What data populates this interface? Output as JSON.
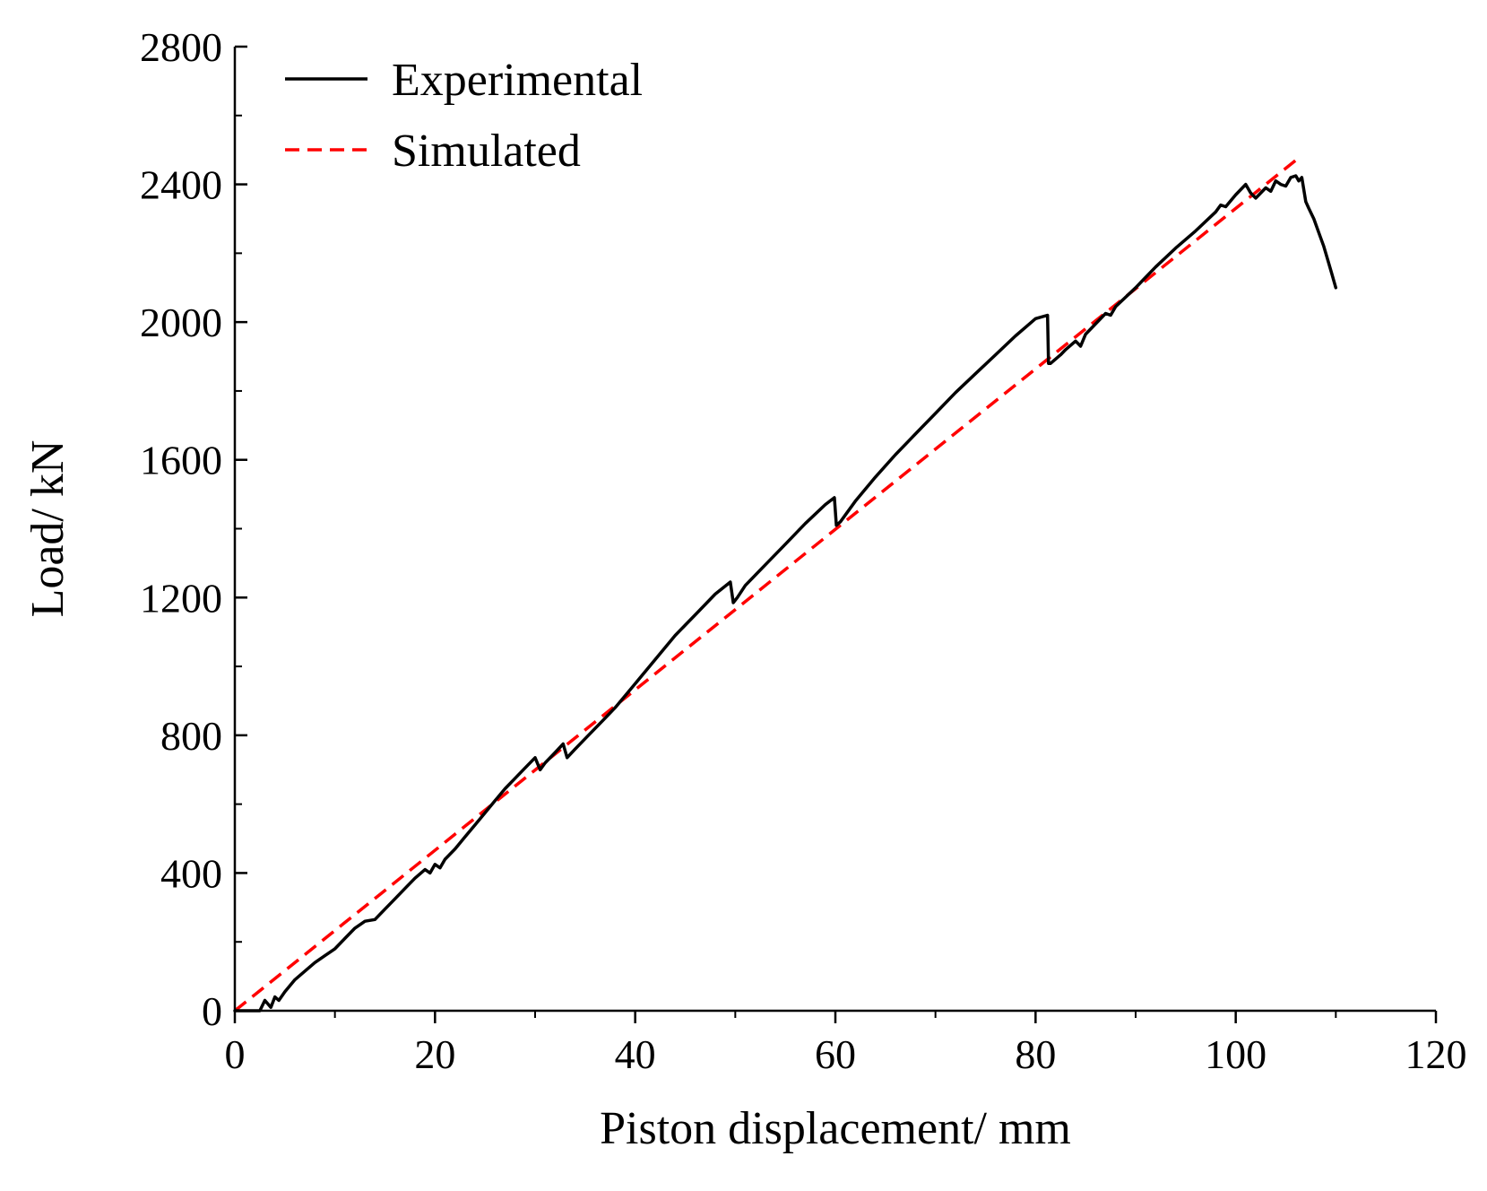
{
  "chart_data": {
    "type": "line",
    "title": "",
    "xlabel": "Piston displacement/ mm",
    "ylabel": "Load/ kN",
    "xlim": [
      0,
      120
    ],
    "ylim": [
      0,
      2800
    ],
    "xticks": [
      0,
      20,
      40,
      60,
      80,
      100,
      120
    ],
    "yticks": [
      0,
      400,
      800,
      1200,
      1600,
      2000,
      2400,
      2800
    ],
    "grid": false,
    "legend_position": "top-left",
    "series": [
      {
        "name": "Experimental",
        "color": "#000000",
        "style": "solid",
        "x": [
          0,
          2.5,
          3.0,
          3.6,
          4.0,
          4.4,
          5.0,
          6.0,
          7.0,
          8.0,
          9.0,
          10.0,
          11.0,
          12.0,
          13.0,
          14.0,
          15.0,
          16.0,
          17.0,
          18.0,
          19.0,
          19.5,
          20.0,
          20.5,
          21.0,
          22.0,
          23.0,
          24.0,
          25.0,
          26.0,
          27.0,
          28.0,
          29.0,
          30.0,
          30.5,
          31.0,
          32.0,
          32.8,
          33.2,
          34.0,
          35.0,
          36.0,
          37.0,
          38.0,
          40.0,
          42.0,
          44.0,
          46.0,
          48.0,
          49.5,
          49.8,
          50.2,
          51.0,
          53.0,
          55.0,
          57.0,
          59.0,
          59.9,
          60.1,
          60.5,
          62.0,
          64.0,
          66.0,
          68.0,
          70.0,
          72.0,
          74.0,
          76.0,
          78.0,
          80.0,
          81.2,
          81.3,
          81.5,
          82.5,
          83.0,
          84.0,
          84.5,
          85.0,
          86.0,
          87.0,
          87.5,
          88.0,
          90.0,
          92.0,
          94.0,
          96.0,
          98.0,
          98.5,
          99.0,
          100.0,
          101.0,
          101.5,
          102.0,
          103.0,
          103.5,
          104.0,
          104.5,
          105.0,
          105.5,
          106.0,
          106.3,
          106.6,
          107.0,
          107.3,
          107.8,
          108.3,
          108.8,
          109.2,
          109.6,
          110.0
        ],
        "y": [
          0,
          0,
          30,
          10,
          40,
          30,
          55,
          90,
          115,
          140,
          160,
          180,
          210,
          240,
          260,
          265,
          295,
          325,
          355,
          385,
          410,
          400,
          425,
          415,
          440,
          470,
          505,
          540,
          575,
          610,
          645,
          675,
          705,
          735,
          700,
          720,
          750,
          775,
          735,
          760,
          790,
          820,
          850,
          880,
          950,
          1020,
          1090,
          1150,
          1210,
          1245,
          1185,
          1200,
          1235,
          1295,
          1355,
          1415,
          1470,
          1490,
          1410,
          1420,
          1480,
          1550,
          1615,
          1675,
          1735,
          1795,
          1850,
          1905,
          1960,
          2010,
          2020,
          1880,
          1880,
          1905,
          1920,
          1945,
          1930,
          1965,
          1995,
          2025,
          2020,
          2045,
          2100,
          2160,
          2215,
          2265,
          2320,
          2340,
          2335,
          2370,
          2400,
          2375,
          2360,
          2390,
          2380,
          2410,
          2400,
          2395,
          2420,
          2425,
          2410,
          2420,
          2350,
          2330,
          2300,
          2260,
          2220,
          2180,
          2140,
          2100
        ]
      },
      {
        "name": "Simulated",
        "color": "#ff0000",
        "style": "dashed",
        "x": [
          0,
          106
        ],
        "y": [
          0,
          2470
        ]
      }
    ]
  }
}
